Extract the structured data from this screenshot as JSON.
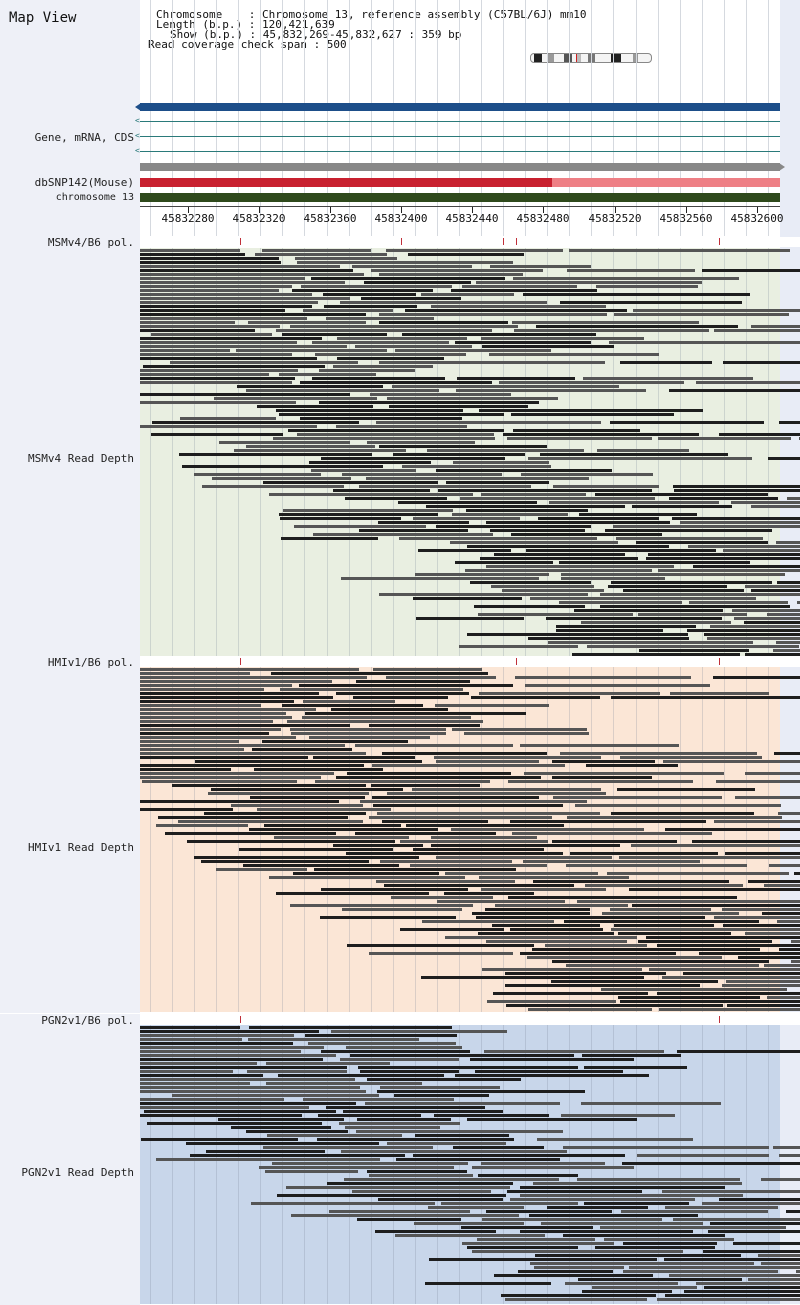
{
  "title": "Map View",
  "header": {
    "chromosome_label": "Chromosome    : Chromosome 13, reference assembly (C57BL/6J) mm10",
    "length_label": "Length (b.p.) : 120,421,639",
    "show_label": "Show (b.p.) : 45,832,269-45,832,627 : 359 bp",
    "coverage_label": "Read coverage check span : 500"
  },
  "tracks": {
    "gene": "Gene, mRNA, CDS",
    "dbsnp": "dbSNP142(Mouse)",
    "chrom": "chromosome 13"
  },
  "ticks": [
    "45832280",
    "45832320",
    "45832360",
    "45832400",
    "45832440",
    "45832480",
    "45832520",
    "45832560",
    "45832600"
  ],
  "panels": [
    {
      "pol_label": "MSMv4/B6 pol.",
      "depth_label": "MSMv4 Read Depth",
      "bg": "#e9efe1"
    },
    {
      "pol_label": "HMIv1/B6 pol.",
      "depth_label": "HMIv1 Read Depth",
      "bg": "#fbe6d6"
    },
    {
      "pol_label": "PGN2v1/B6 pol.",
      "depth_label": "PGN2v1 Read Depth",
      "bg": "#c8d6ea"
    }
  ],
  "colors": {
    "gene_bar": "#1d4e89",
    "snp_dark": "#c8202f",
    "snp_light": "#ee7f85",
    "chrom_bar": "#2f4a1c",
    "gray_bar": "#888888"
  }
}
